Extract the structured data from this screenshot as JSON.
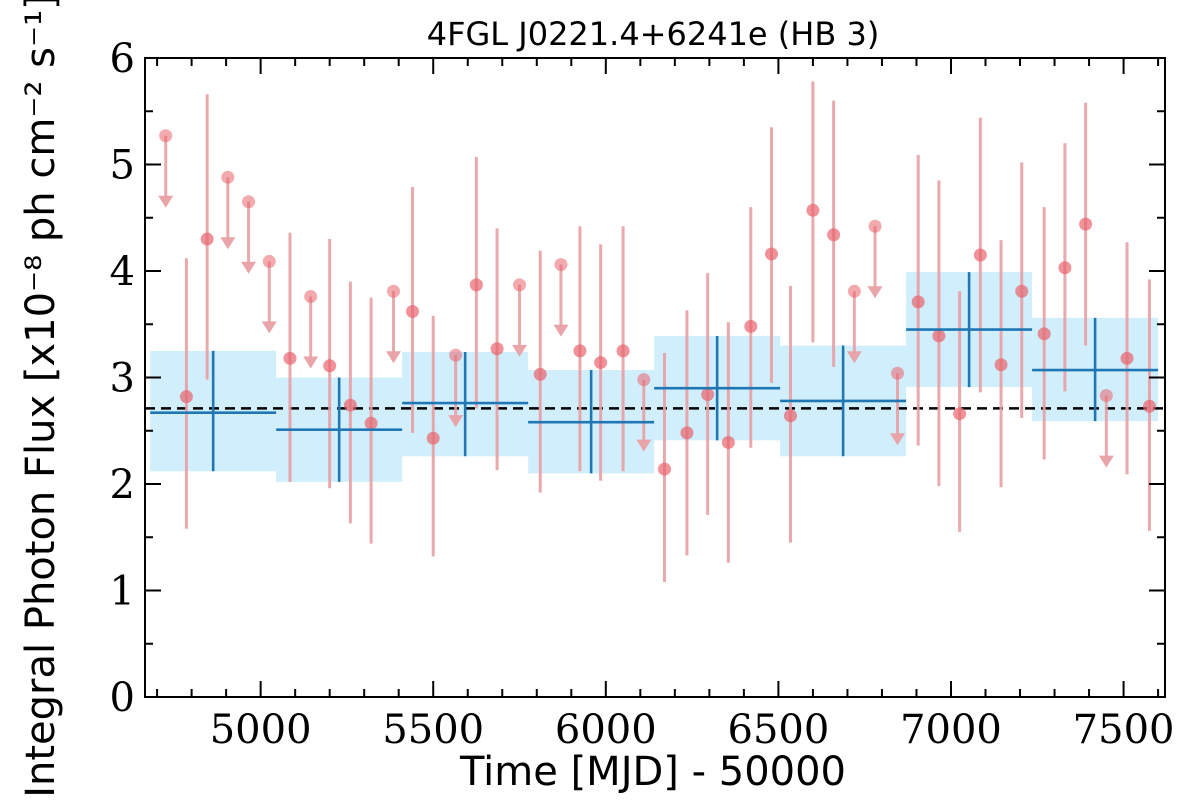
{
  "chart_data": {
    "type": "scatter",
    "title": "4FGL J0221.4+6241e (HB 3)",
    "xlabel": "Time [MJD] - 50000",
    "ylabel": "Integral Photon Flux [x10⁻⁸ ph cm⁻² s⁻¹]",
    "xlim": [
      4665,
      7620
    ],
    "ylim": [
      0,
      6
    ],
    "x_ticks": [
      5000,
      5500,
      6000,
      6500,
      7000,
      7500
    ],
    "y_ticks": [
      0,
      1,
      2,
      3,
      4,
      5,
      6
    ],
    "mean_flux": 2.71,
    "colors": {
      "short_bin_points": "#e8646e",
      "short_bin_errorbars": "#e8a0a4",
      "long_bin_errorbars": "#1f77b4",
      "long_bin_bands": "#d0eefc",
      "mean_line": "#000000"
    },
    "series": [
      {
        "kind": "long_bins",
        "points": [
          {
            "x0": 4680,
            "x1": 5045,
            "y": 2.67,
            "lo": 2.12,
            "hi": 3.25
          },
          {
            "x0": 5045,
            "x1": 5410,
            "y": 2.51,
            "lo": 2.02,
            "hi": 3.0
          },
          {
            "x0": 5410,
            "x1": 5775,
            "y": 2.76,
            "lo": 2.26,
            "hi": 3.24
          },
          {
            "x0": 5775,
            "x1": 6140,
            "y": 2.58,
            "lo": 2.1,
            "hi": 3.07
          },
          {
            "x0": 6140,
            "x1": 6505,
            "y": 2.9,
            "lo": 2.41,
            "hi": 3.39
          },
          {
            "x0": 6505,
            "x1": 6870,
            "y": 2.78,
            "lo": 2.26,
            "hi": 3.3
          },
          {
            "x0": 6870,
            "x1": 7235,
            "y": 3.45,
            "lo": 2.91,
            "hi": 3.99
          },
          {
            "x0": 7235,
            "x1": 7600,
            "y": 3.07,
            "lo": 2.59,
            "hi": 3.56
          }
        ]
      },
      {
        "kind": "short_bins_detections",
        "points": [
          {
            "x": 4785,
            "y": 2.82,
            "lo": 1.58,
            "hi": 4.12
          },
          {
            "x": 4845,
            "y": 4.3,
            "lo": 2.98,
            "hi": 5.66
          },
          {
            "x": 5085,
            "y": 3.18,
            "lo": 2.02,
            "hi": 4.36
          },
          {
            "x": 5200,
            "y": 3.11,
            "lo": 1.96,
            "hi": 4.3
          },
          {
            "x": 5260,
            "y": 2.74,
            "lo": 1.63,
            "hi": 3.9
          },
          {
            "x": 5320,
            "y": 2.57,
            "lo": 1.44,
            "hi": 3.75
          },
          {
            "x": 5440,
            "y": 3.62,
            "lo": 2.48,
            "hi": 4.79
          },
          {
            "x": 5500,
            "y": 2.43,
            "lo": 1.32,
            "hi": 3.58
          },
          {
            "x": 5625,
            "y": 3.87,
            "lo": 2.71,
            "hi": 5.07
          },
          {
            "x": 5685,
            "y": 3.27,
            "lo": 2.13,
            "hi": 4.4
          },
          {
            "x": 5810,
            "y": 3.03,
            "lo": 1.92,
            "hi": 4.19
          },
          {
            "x": 5925,
            "y": 3.25,
            "lo": 2.12,
            "hi": 4.42
          },
          {
            "x": 5985,
            "y": 3.14,
            "lo": 2.03,
            "hi": 4.25
          },
          {
            "x": 6050,
            "y": 3.25,
            "lo": 2.12,
            "hi": 4.42
          },
          {
            "x": 6170,
            "y": 2.14,
            "lo": 1.08,
            "hi": 3.23
          },
          {
            "x": 6235,
            "y": 2.48,
            "lo": 1.33,
            "hi": 3.63
          },
          {
            "x": 6295,
            "y": 2.84,
            "lo": 1.71,
            "hi": 3.98
          },
          {
            "x": 6355,
            "y": 2.39,
            "lo": 1.26,
            "hi": 3.52
          },
          {
            "x": 6420,
            "y": 3.48,
            "lo": 2.34,
            "hi": 4.6
          },
          {
            "x": 6480,
            "y": 4.16,
            "lo": 2.95,
            "hi": 5.35
          },
          {
            "x": 6535,
            "y": 2.64,
            "lo": 1.45,
            "hi": 3.86
          },
          {
            "x": 6600,
            "y": 4.57,
            "lo": 3.33,
            "hi": 5.78
          },
          {
            "x": 6660,
            "y": 4.34,
            "lo": 3.1,
            "hi": 5.6
          },
          {
            "x": 6905,
            "y": 3.71,
            "lo": 2.36,
            "hi": 5.09
          },
          {
            "x": 6965,
            "y": 3.39,
            "lo": 1.98,
            "hi": 4.85
          },
          {
            "x": 7025,
            "y": 2.66,
            "lo": 1.55,
            "hi": 3.81
          },
          {
            "x": 7085,
            "y": 4.15,
            "lo": 2.86,
            "hi": 5.44
          },
          {
            "x": 7145,
            "y": 3.12,
            "lo": 1.97,
            "hi": 4.29
          },
          {
            "x": 7205,
            "y": 3.81,
            "lo": 2.62,
            "hi": 5.02
          },
          {
            "x": 7270,
            "y": 3.41,
            "lo": 2.23,
            "hi": 4.6
          },
          {
            "x": 7330,
            "y": 4.03,
            "lo": 2.87,
            "hi": 5.2
          },
          {
            "x": 7390,
            "y": 4.44,
            "lo": 3.3,
            "hi": 5.58
          },
          {
            "x": 7510,
            "y": 3.18,
            "lo": 2.09,
            "hi": 4.27
          },
          {
            "x": 7575,
            "y": 2.73,
            "lo": 1.56,
            "hi": 3.92
          }
        ]
      },
      {
        "kind": "short_bins_upper_limits",
        "points": [
          {
            "x": 4725,
            "y": 5.27
          },
          {
            "x": 4905,
            "y": 4.88
          },
          {
            "x": 4965,
            "y": 4.65
          },
          {
            "x": 5025,
            "y": 4.09
          },
          {
            "x": 5145,
            "y": 3.76
          },
          {
            "x": 5385,
            "y": 3.81
          },
          {
            "x": 5565,
            "y": 3.21
          },
          {
            "x": 5750,
            "y": 3.87
          },
          {
            "x": 5870,
            "y": 4.06
          },
          {
            "x": 6110,
            "y": 2.98
          },
          {
            "x": 6720,
            "y": 3.81
          },
          {
            "x": 6780,
            "y": 4.42
          },
          {
            "x": 6845,
            "y": 3.04
          },
          {
            "x": 7450,
            "y": 2.83
          }
        ]
      }
    ]
  }
}
